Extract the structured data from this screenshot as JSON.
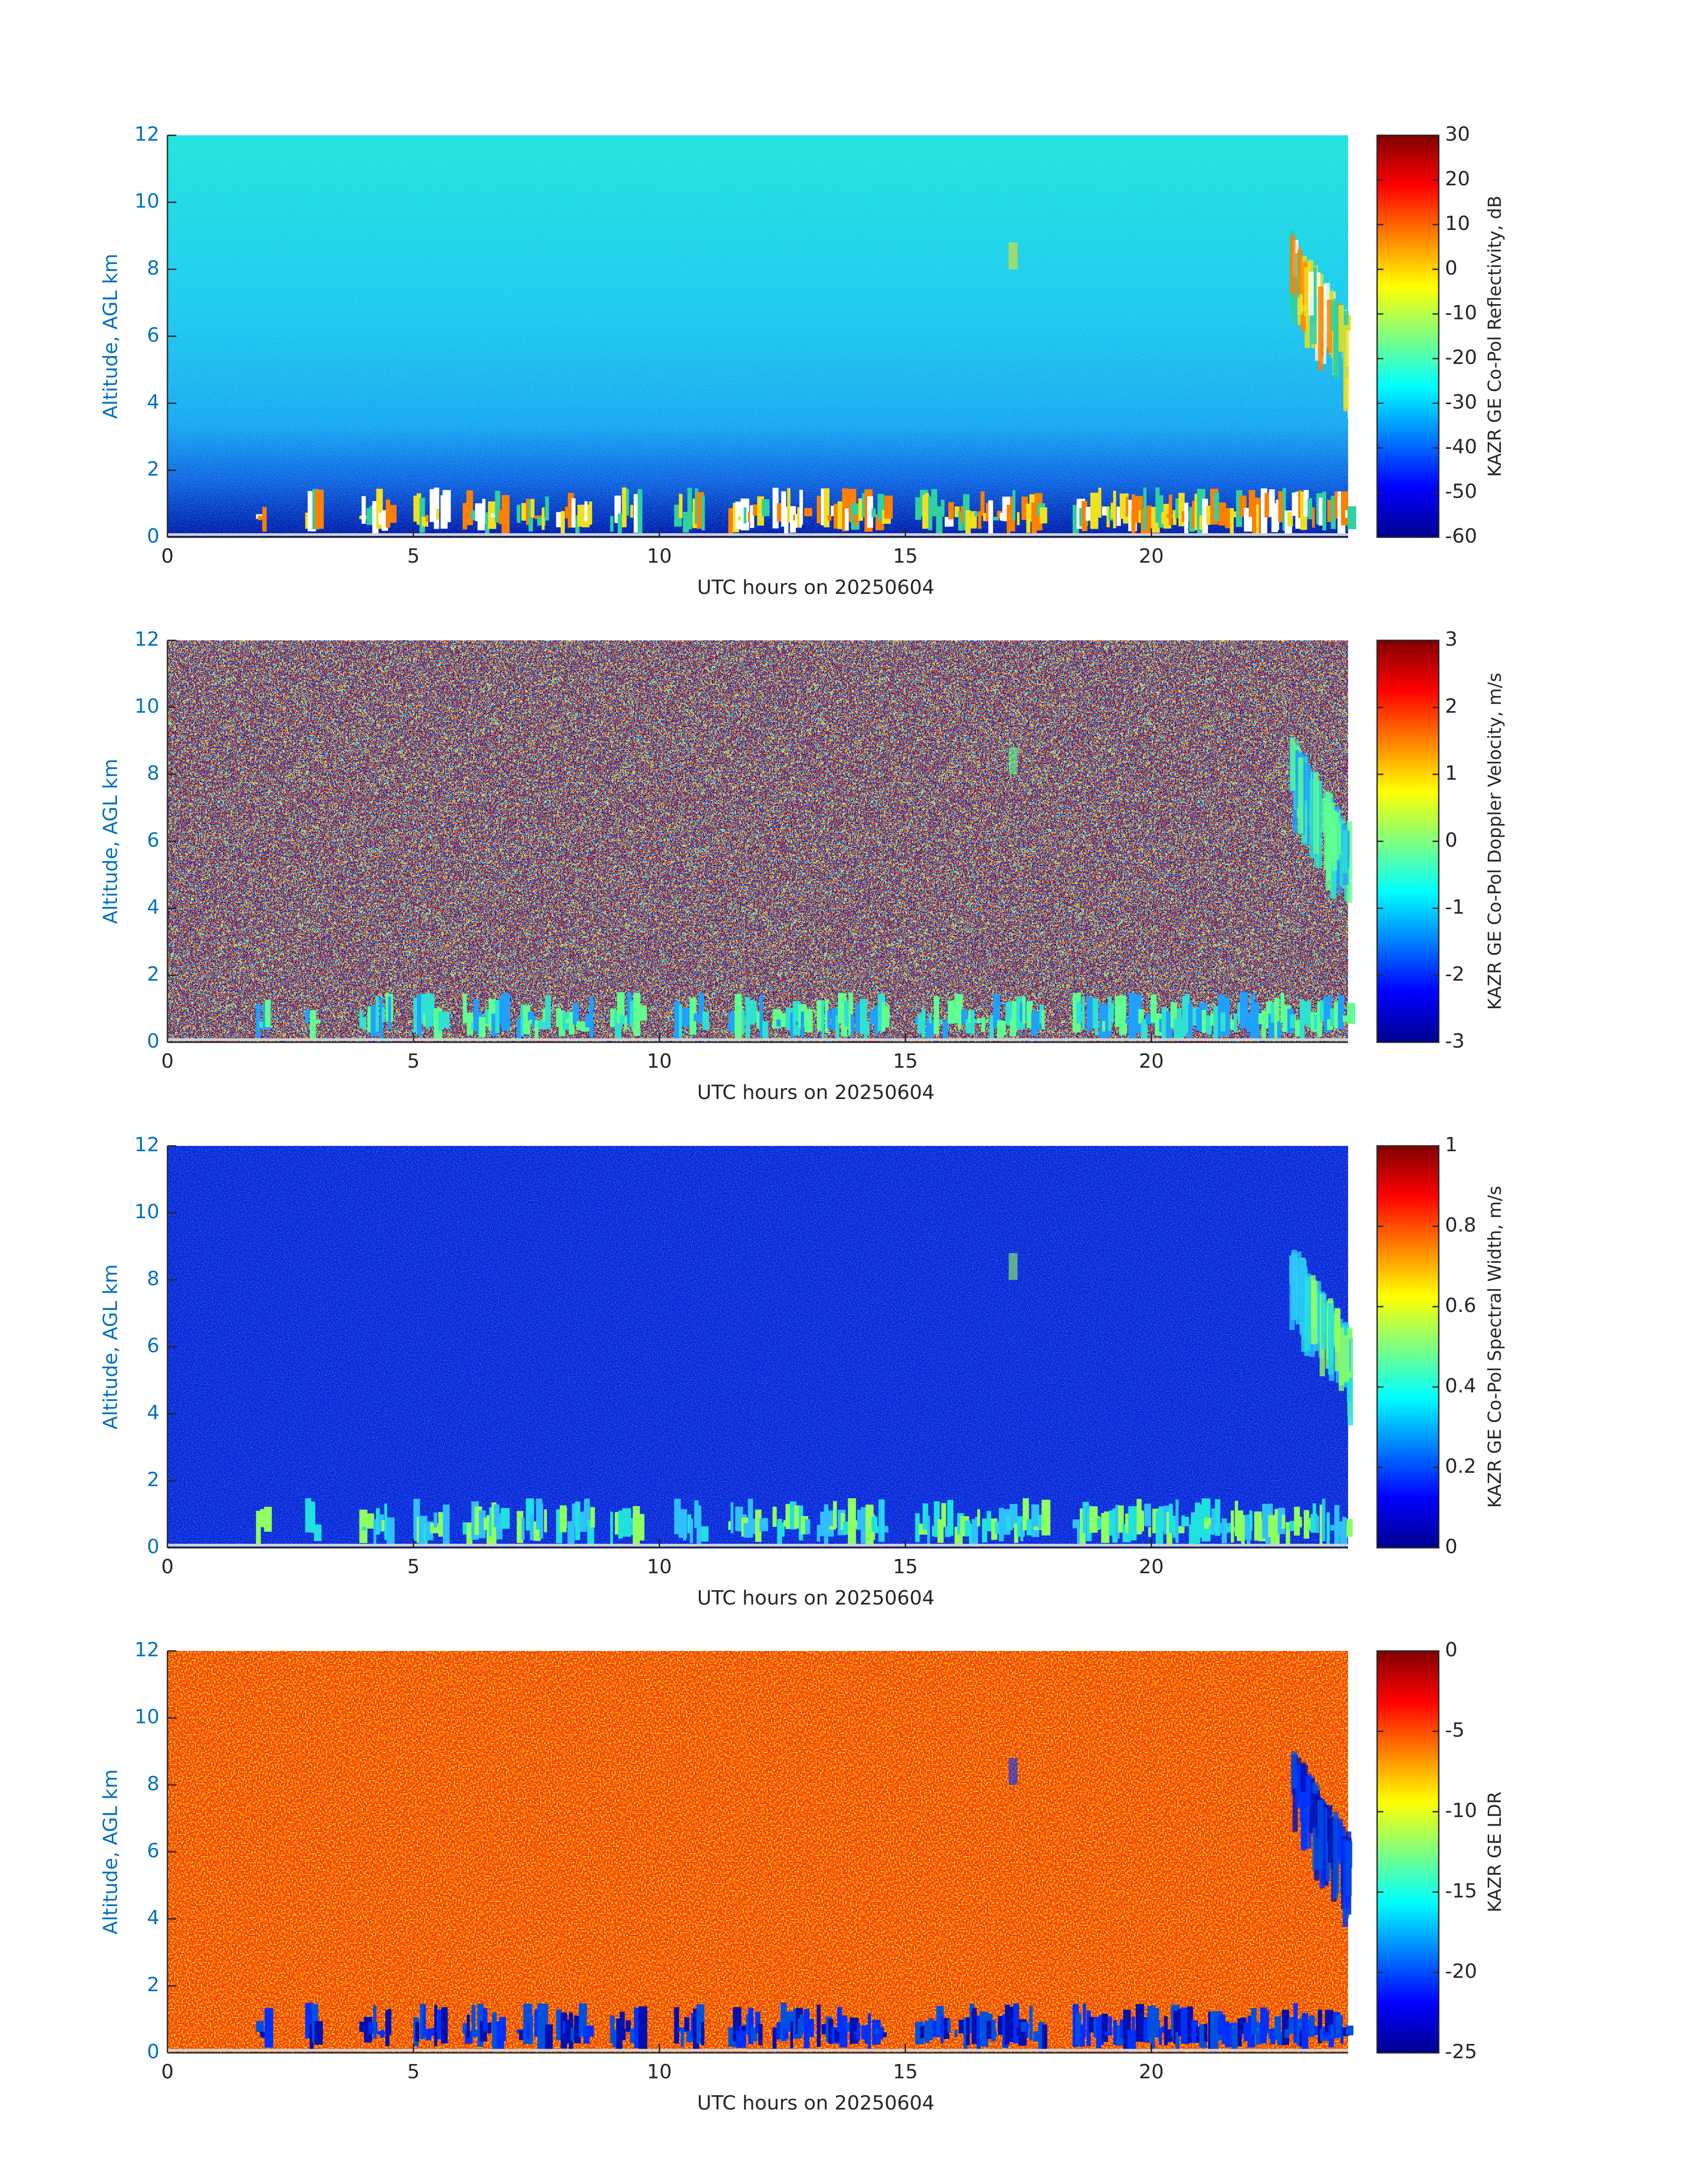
{
  "chart_data": [
    {
      "type": "heatmap",
      "colormap": "jet",
      "xlabel": "UTC hours on 20250604",
      "ylabel": "Altitude, AGL km",
      "xlim": [
        0,
        24
      ],
      "xticks": [
        0,
        5,
        10,
        15,
        20
      ],
      "ylim": [
        0,
        12
      ],
      "yticks": [
        0,
        2,
        4,
        6,
        8,
        10,
        12
      ],
      "colorbar": {
        "label": "KAZR GE Co-Pol Reflectivity, dB",
        "clim": [
          -60,
          30
        ],
        "ticks": [
          -60,
          -50,
          -40,
          -30,
          -20,
          -10,
          0,
          10,
          20,
          30
        ]
      }
    },
    {
      "type": "heatmap",
      "colormap": "jet",
      "xlabel": "UTC hours on 20250604",
      "ylabel": "Altitude, AGL km",
      "xlim": [
        0,
        24
      ],
      "xticks": [
        0,
        5,
        10,
        15,
        20
      ],
      "ylim": [
        0,
        12
      ],
      "yticks": [
        0,
        2,
        4,
        6,
        8,
        10,
        12
      ],
      "colorbar": {
        "label": "KAZR GE Co-Pol Doppler Velocity, m/s",
        "clim": [
          -3,
          3
        ],
        "ticks": [
          -3,
          -2,
          -1,
          0,
          1,
          2,
          3
        ]
      }
    },
    {
      "type": "heatmap",
      "colormap": "jet",
      "xlabel": "UTC hours on 20250604",
      "ylabel": "Altitude, AGL km",
      "xlim": [
        0,
        24
      ],
      "xticks": [
        0,
        5,
        10,
        15,
        20
      ],
      "ylim": [
        0,
        12
      ],
      "yticks": [
        0,
        2,
        4,
        6,
        8,
        10,
        12
      ],
      "colorbar": {
        "label": "KAZR GE Co-Pol Spectral Width, m/s",
        "clim": [
          0,
          1
        ],
        "ticks": [
          0,
          0.2,
          0.4,
          0.6,
          0.8,
          1
        ]
      }
    },
    {
      "type": "heatmap",
      "colormap": "jet",
      "xlabel": "UTC hours on 20250604",
      "ylabel": "Altitude, AGL km",
      "xlim": [
        0,
        24
      ],
      "xticks": [
        0,
        5,
        10,
        15,
        20
      ],
      "ylim": [
        0,
        12
      ],
      "yticks": [
        0,
        2,
        4,
        6,
        8,
        10,
        12
      ],
      "colorbar": {
        "label": "KAZR GE LDR",
        "clim": [
          -25,
          0
        ],
        "ticks": [
          -25,
          -20,
          -15,
          -10,
          -5,
          0
        ]
      }
    }
  ]
}
